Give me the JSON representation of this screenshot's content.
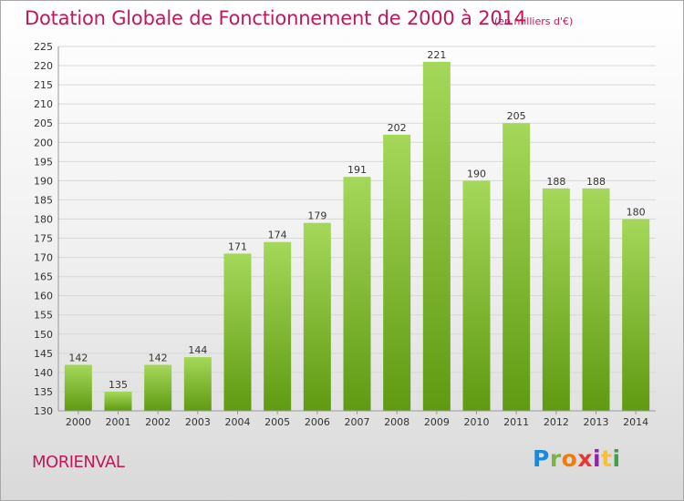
{
  "header": {
    "title": "Dotation Globale de Fonctionnement de 2000 à 2014",
    "subtitle": "(en milliers d'€)"
  },
  "footer": {
    "commune": "MORIENVAL",
    "logo": "Proxiti"
  },
  "colors": {
    "title": "#c2185b",
    "bar_top": "#a5d85a",
    "bar_bottom": "#5f9a12"
  },
  "chart_data": {
    "type": "bar",
    "title": "Dotation Globale de Fonctionnement de 2000 à 2014",
    "subtitle": "(en milliers d'€)",
    "categories": [
      "2000",
      "2001",
      "2002",
      "2003",
      "2004",
      "2005",
      "2006",
      "2007",
      "2008",
      "2009",
      "2010",
      "2011",
      "2012",
      "2013",
      "2014"
    ],
    "values": [
      142,
      135,
      142,
      144,
      171,
      174,
      179,
      191,
      202,
      221,
      190,
      205,
      188,
      188,
      180
    ],
    "ylim": [
      130,
      225
    ],
    "yticks": [
      130,
      135,
      140,
      145,
      150,
      155,
      160,
      165,
      170,
      175,
      180,
      185,
      190,
      195,
      200,
      205,
      210,
      215,
      220,
      225
    ],
    "grid": true,
    "data_labels": true
  }
}
